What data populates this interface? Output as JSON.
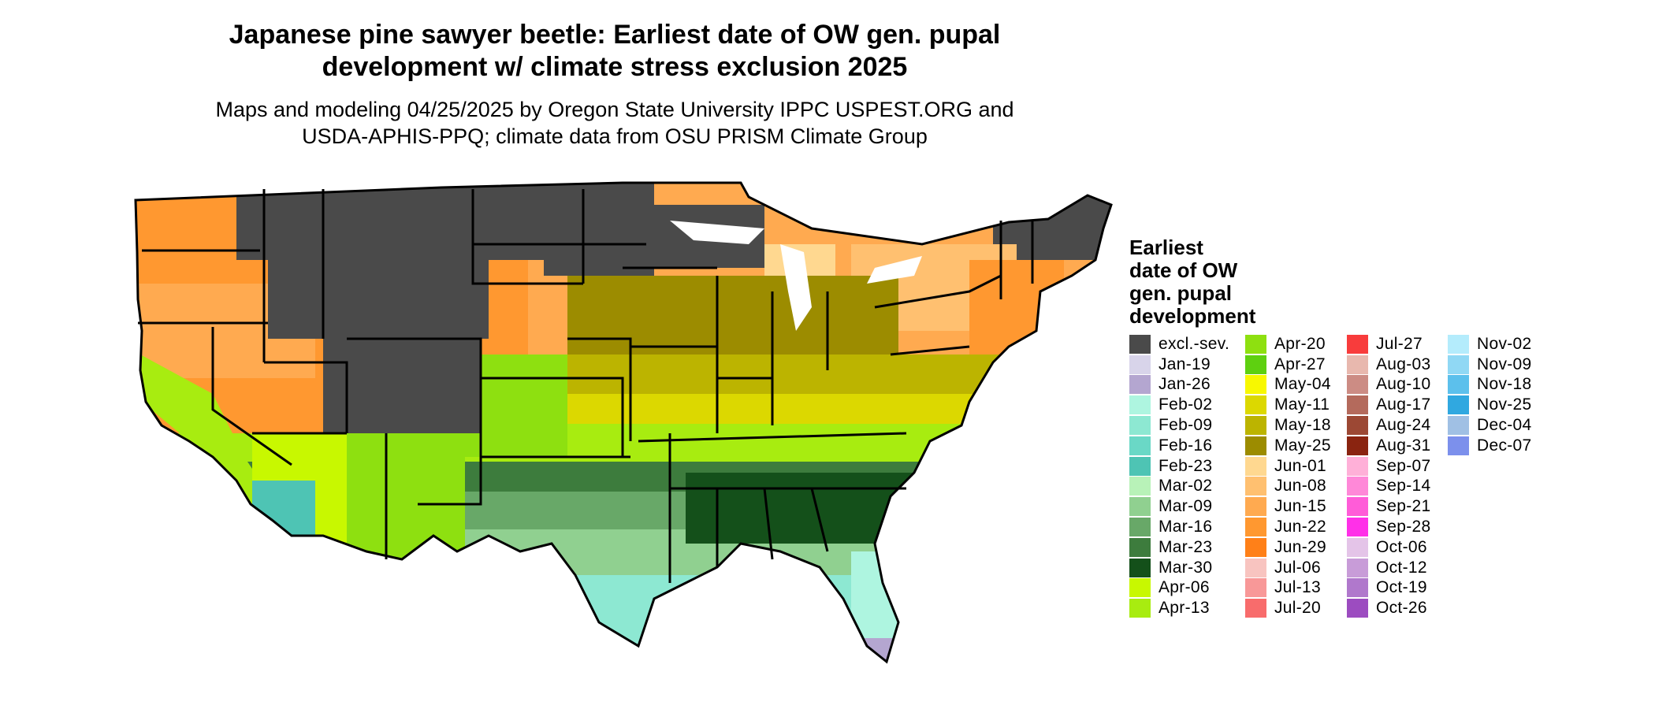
{
  "title_line1": "Japanese pine sawyer beetle: Earliest date of OW gen. pupal",
  "title_line2": "development w/ climate stress exclusion 2025",
  "subtitle_line1": "Maps and modeling 04/25/2025 by Oregon State University IPPC USPEST.ORG and",
  "subtitle_line2": "USDA-APHIS-PPQ; climate data from OSU PRISM Climate Group",
  "legend": {
    "title_lines": [
      "Earliest",
      "date of OW",
      "gen. pupal",
      "development"
    ],
    "items": [
      {
        "label": "excl.-sev.",
        "color": "#4a4a4a"
      },
      {
        "label": "Jan-19",
        "color": "#d8d4ea"
      },
      {
        "label": "Jan-26",
        "color": "#b4a6d0"
      },
      {
        "label": "Feb-02",
        "color": "#aef5e0"
      },
      {
        "label": "Feb-09",
        "color": "#8de8d2"
      },
      {
        "label": "Feb-16",
        "color": "#6ad8c6"
      },
      {
        "label": "Feb-23",
        "color": "#4ec4b4"
      },
      {
        "label": "Mar-02",
        "color": "#b8f2b8"
      },
      {
        "label": "Mar-09",
        "color": "#90d090"
      },
      {
        "label": "Mar-16",
        "color": "#68a868"
      },
      {
        "label": "Mar-23",
        "color": "#3d7c3d"
      },
      {
        "label": "Mar-30",
        "color": "#14501a"
      },
      {
        "label": "Apr-06",
        "color": "#c8f800"
      },
      {
        "label": "Apr-13",
        "color": "#a8ec10"
      },
      {
        "label": "Apr-20",
        "color": "#8ee010"
      },
      {
        "label": "Apr-27",
        "color": "#5ed010"
      },
      {
        "label": "May-04",
        "color": "#f8f800"
      },
      {
        "label": "May-11",
        "color": "#dcd800"
      },
      {
        "label": "May-18",
        "color": "#bcb400"
      },
      {
        "label": "May-25",
        "color": "#9c8c00"
      },
      {
        "label": "Jun-01",
        "color": "#ffd890"
      },
      {
        "label": "Jun-08",
        "color": "#ffc070"
      },
      {
        "label": "Jun-15",
        "color": "#ffaa50"
      },
      {
        "label": "Jun-22",
        "color": "#ff9830"
      },
      {
        "label": "Jun-29",
        "color": "#ff8018"
      },
      {
        "label": "Jul-06",
        "color": "#f8c4c0"
      },
      {
        "label": "Jul-13",
        "color": "#f89898"
      },
      {
        "label": "Jul-20",
        "color": "#f86c6c"
      },
      {
        "label": "Jul-27",
        "color": "#f83c3c"
      },
      {
        "label": "Aug-03",
        "color": "#e8b8ae"
      },
      {
        "label": "Aug-10",
        "color": "#cc8c84"
      },
      {
        "label": "Aug-17",
        "color": "#b46a5c"
      },
      {
        "label": "Aug-24",
        "color": "#9c4834"
      },
      {
        "label": "Aug-31",
        "color": "#8a2410"
      },
      {
        "label": "Sep-07",
        "color": "#ffb0d8"
      },
      {
        "label": "Sep-14",
        "color": "#ff88d8"
      },
      {
        "label": "Sep-21",
        "color": "#ff5cd8"
      },
      {
        "label": "Sep-28",
        "color": "#ff30e8"
      },
      {
        "label": "Oct-06",
        "color": "#e4c4e8"
      },
      {
        "label": "Oct-12",
        "color": "#c89cd8"
      },
      {
        "label": "Oct-19",
        "color": "#b078cc"
      },
      {
        "label": "Oct-26",
        "color": "#9c4cc0"
      },
      {
        "label": "Nov-02",
        "color": "#b4ecfc"
      },
      {
        "label": "Nov-09",
        "color": "#90d8f4"
      },
      {
        "label": "Nov-18",
        "color": "#5cc0ec"
      },
      {
        "label": "Nov-25",
        "color": "#30a8e0"
      },
      {
        "label": "Dec-04",
        "color": "#a0c0e4"
      },
      {
        "label": "Dec-07",
        "color": "#7c90ec"
      }
    ]
  }
}
